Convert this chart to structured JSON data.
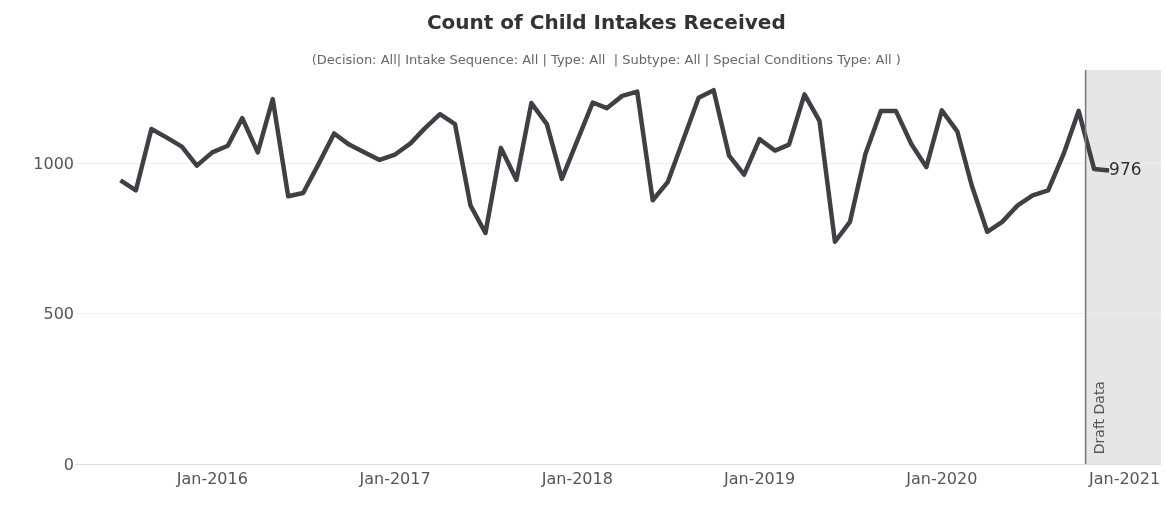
{
  "chart_data": {
    "type": "line",
    "title": "Count of Child Intakes Received",
    "subtitle": "(Decision: All| Intake Sequence: All | Type: All  | Subtype: All | Special Conditions Type: All )",
    "x": [
      "2015-07",
      "2015-08",
      "2015-09",
      "2015-10",
      "2015-11",
      "2015-12",
      "2016-01",
      "2016-02",
      "2016-03",
      "2016-04",
      "2016-05",
      "2016-06",
      "2016-07",
      "2016-08",
      "2016-09",
      "2016-10",
      "2016-11",
      "2016-12",
      "2017-01",
      "2017-02",
      "2017-03",
      "2017-04",
      "2017-05",
      "2017-06",
      "2017-07",
      "2017-08",
      "2017-09",
      "2017-10",
      "2017-11",
      "2017-12",
      "2018-01",
      "2018-02",
      "2018-03",
      "2018-04",
      "2018-05",
      "2018-06",
      "2018-07",
      "2018-08",
      "2018-09",
      "2018-10",
      "2018-11",
      "2018-12",
      "2019-01",
      "2019-02",
      "2019-03",
      "2019-04",
      "2019-05",
      "2019-06",
      "2019-07",
      "2019-08",
      "2019-09",
      "2019-10",
      "2019-11",
      "2019-12",
      "2020-01",
      "2020-02",
      "2020-03",
      "2020-04",
      "2020-05",
      "2020-06",
      "2020-07",
      "2020-08",
      "2020-09",
      "2020-10",
      "2020-11",
      "2020-12"
    ],
    "series": [
      {
        "color": "#3f4045",
        "values": [
          943,
          910,
          1114,
          1086,
          1055,
          992,
          1036,
          1058,
          1150,
          1036,
          1213,
          890,
          901,
          998,
          1099,
          1062,
          1036,
          1011,
          1029,
          1066,
          1115,
          1163,
          1130,
          860,
          768,
          1051,
          945,
          1200,
          1130,
          948,
          1075,
          1202,
          1183,
          1224,
          1238,
          877,
          937,
          1077,
          1218,
          1243,
          1025,
          962,
          1080,
          1042,
          1062,
          1229,
          1141,
          739,
          805,
          1031,
          1174,
          1174,
          1064,
          987,
          1176,
          1106,
          926,
          772,
          805,
          860,
          893,
          910,
          1031,
          1174,
          981,
          976
        ],
        "value_labels": [
          null,
          null,
          null,
          null,
          null,
          null,
          null,
          null,
          null,
          null,
          null,
          null,
          null,
          null,
          null,
          null,
          null,
          null,
          null,
          null,
          null,
          null,
          null,
          null,
          null,
          null,
          null,
          null,
          null,
          null,
          null,
          null,
          null,
          null,
          null,
          null,
          null,
          null,
          null,
          null,
          null,
          null,
          null,
          null,
          null,
          null,
          null,
          null,
          null,
          null,
          null,
          null,
          null,
          null,
          null,
          null,
          null,
          null,
          null,
          null,
          null,
          null,
          null,
          null,
          null,
          "976"
        ]
      }
    ],
    "xlim": [
      "2015-04-01",
      "2021-03-15"
    ],
    "xticks": [
      {
        "value": "2016-01",
        "label": "Jan-2016"
      },
      {
        "value": "2017-01",
        "label": "Jan-2017"
      },
      {
        "value": "2018-01",
        "label": "Jan-2018"
      },
      {
        "value": "2019-01",
        "label": "Jan-2019"
      },
      {
        "value": "2020-01",
        "label": "Jan-2020"
      },
      {
        "value": "2021-01",
        "label": "Jan-2021"
      }
    ],
    "ylim": [
      0,
      1310
    ],
    "yticks": [
      0,
      500,
      1000
    ],
    "grid": "y",
    "marker": "none",
    "line_style": "solid",
    "ref_lines": [
      {
        "axis": "x",
        "value": "2020-10-15",
        "color": "#7a7a7a"
      }
    ],
    "bands": [
      {
        "axis": "x",
        "from": "2020-10-15",
        "to": "2021-03-15",
        "label": "Draft Data",
        "color": "#e6e6e6"
      }
    ]
  }
}
